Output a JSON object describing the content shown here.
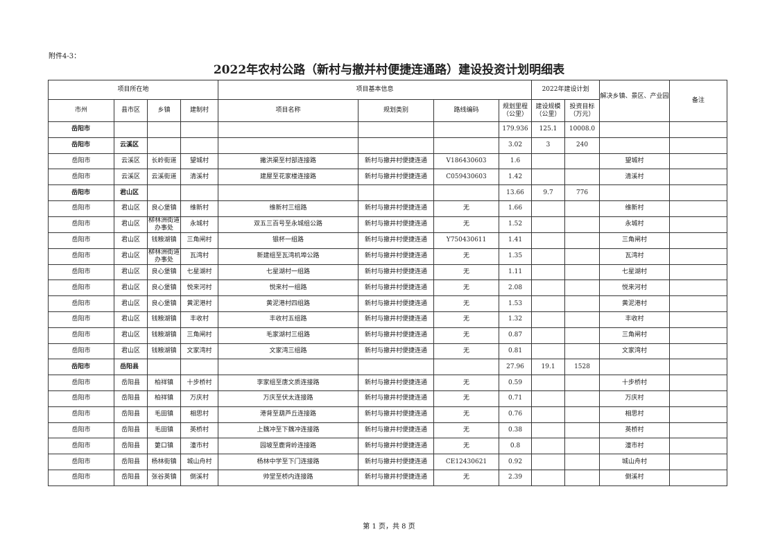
{
  "attachment_label": "附件4-3：",
  "title": "2022年农村公路（新村与撤并村便捷连通路）建设投资计划明细表",
  "header": {
    "group_location": "项目所在地",
    "group_basic": "项目基本信息",
    "group_plan": "2022年建设计划",
    "solve": "解决乡镇、景区、产业园",
    "remark": "备注",
    "columns": [
      "市州",
      "县市区",
      "乡镇",
      "建制村",
      "项目名称",
      "规划类别",
      "路线编码",
      "规划里程（公里）",
      "建设规模（公里）",
      "投资目标（万元）"
    ]
  },
  "rows": [
    {
      "type": "sum",
      "cells": [
        "岳阳市",
        "",
        "",
        "",
        "",
        "",
        "",
        "179.936",
        "125.1",
        "10008.0",
        "",
        ""
      ]
    },
    {
      "type": "sum",
      "cells": [
        "岳阳市",
        "云溪区",
        "",
        "",
        "",
        "",
        "",
        "3.02",
        "3",
        "240",
        "",
        ""
      ]
    },
    {
      "type": "item",
      "cells": [
        "岳阳市",
        "云溪区",
        "长岭街道",
        "望城村",
        "撇洪渠至村部连接路",
        "新村与撤井村便捷连通",
        "V186430603",
        "1.6",
        "",
        "",
        "望城村",
        ""
      ]
    },
    {
      "type": "item",
      "cells": [
        "岳阳市",
        "云溪区",
        "云溪街道",
        "清溪村",
        "建屋至花家楼连接路",
        "新村与撤井村便捷连通",
        "C059430603",
        "1.42",
        "",
        "",
        "清溪村",
        ""
      ]
    },
    {
      "type": "sum",
      "cells": [
        "岳阳市",
        "君山区",
        "",
        "",
        "",
        "",
        "",
        "13.66",
        "9.7",
        "776",
        "",
        ""
      ]
    },
    {
      "type": "item",
      "cells": [
        "岳阳市",
        "君山区",
        "良心堡镇",
        "维新村",
        "维新村三组路",
        "新村与撤井村便捷连通",
        "无",
        "1.66",
        "",
        "",
        "维新村",
        ""
      ]
    },
    {
      "type": "item",
      "cells": [
        "岳阳市",
        "君山区",
        "柳林洲街道办事处",
        "永城村",
        "双五三百号至永城组公路",
        "新村与撤井村便捷连通",
        "无",
        "1.52",
        "",
        "",
        "永城村",
        ""
      ]
    },
    {
      "type": "item",
      "cells": [
        "岳阳市",
        "君山区",
        "钱粮湖镇",
        "三角闸村",
        "银杯一组路",
        "新村与撤井村便捷连通",
        "Y750430611",
        "1.41",
        "",
        "",
        "三角闸村",
        ""
      ]
    },
    {
      "type": "item",
      "cells": [
        "岳阳市",
        "君山区",
        "柳林洲街道办事处",
        "瓦湾村",
        "新建组至瓦湾机埠公路",
        "新村与撤井村便捷连通",
        "无",
        "1.35",
        "",
        "",
        "瓦湾村",
        ""
      ]
    },
    {
      "type": "item",
      "cells": [
        "岳阳市",
        "君山区",
        "良心堡镇",
        "七星湖村",
        "七星湖村一组路",
        "新村与撤井村便捷连通",
        "无",
        "1.11",
        "",
        "",
        "七星湖村",
        ""
      ]
    },
    {
      "type": "item",
      "cells": [
        "岳阳市",
        "君山区",
        "良心堡镇",
        "悦来河村",
        "悦来村一组路",
        "新村与撤井村便捷连通",
        "无",
        "2.08",
        "",
        "",
        "悦来河村",
        ""
      ]
    },
    {
      "type": "item",
      "cells": [
        "岳阳市",
        "君山区",
        "良心堡镇",
        "黄泥港村",
        "黄泥港村四组路",
        "新村与撤井村便捷连通",
        "无",
        "1.53",
        "",
        "",
        "黄泥港村",
        ""
      ]
    },
    {
      "type": "item",
      "cells": [
        "岳阳市",
        "君山区",
        "钱粮湖镇",
        "丰收村",
        "丰收村五组路",
        "新村与撤井村便捷连通",
        "无",
        "1.32",
        "",
        "",
        "丰收村",
        ""
      ]
    },
    {
      "type": "item",
      "cells": [
        "岳阳市",
        "君山区",
        "钱粮湖镇",
        "三角闸村",
        "毛家湖村三组路",
        "新村与撤井村便捷连通",
        "无",
        "0.87",
        "",
        "",
        "三角闸村",
        ""
      ]
    },
    {
      "type": "item",
      "cells": [
        "岳阳市",
        "君山区",
        "钱粮湖镇",
        "文家湾村",
        "文家湾三组路",
        "新村与撤井村便捷连通",
        "无",
        "0.81",
        "",
        "",
        "文家湾村",
        ""
      ]
    },
    {
      "type": "sum",
      "cells": [
        "岳阳市",
        "岳阳县",
        "",
        "",
        "",
        "",
        "",
        "27.96",
        "19.1",
        "1528",
        "",
        ""
      ]
    },
    {
      "type": "item",
      "cells": [
        "岳阳市",
        "岳阳县",
        "柏祥镇",
        "十步桥村",
        "李家组至唐文质连接路",
        "新村与撤井村便捷连通",
        "无",
        "0.59",
        "",
        "",
        "十步桥村",
        ""
      ]
    },
    {
      "type": "item",
      "cells": [
        "岳阳市",
        "岳阳县",
        "柏祥镇",
        "万庆村",
        "万庆至伏太连接路",
        "新村与撤井村便捷连通",
        "无",
        "0.71",
        "",
        "",
        "万庆村",
        ""
      ]
    },
    {
      "type": "item",
      "cells": [
        "岳阳市",
        "岳阳县",
        "毛田镇",
        "相思村",
        "港背至葫芦丘连接路",
        "新村与撤井村便捷连通",
        "无",
        "0.76",
        "",
        "",
        "相思村",
        ""
      ]
    },
    {
      "type": "item",
      "cells": [
        "岳阳市",
        "岳阳县",
        "毛田镇",
        "英桥村",
        "上魏冲至下魏冲连接路",
        "新村与撤井村便捷连通",
        "无",
        "0.38",
        "",
        "",
        "英桥村",
        ""
      ]
    },
    {
      "type": "item",
      "cells": [
        "岳阳市",
        "岳阳县",
        "筻口镇",
        "潼市村",
        "园坡至鹿背岭连接路",
        "新村与撤井村便捷连通",
        "无",
        "0.8",
        "",
        "",
        "潼市村",
        ""
      ]
    },
    {
      "type": "item",
      "cells": [
        "岳阳市",
        "岳阳县",
        "杨林街镇",
        "城山舟村",
        "杨林中学至下门连接路",
        "新村与撤井村便捷连通",
        "CE12430621",
        "0.92",
        "",
        "",
        "城山舟村",
        ""
      ]
    },
    {
      "type": "item",
      "cells": [
        "岳阳市",
        "岳阳县",
        "张谷英镇",
        "倒溪村",
        "帅堂至桥内连接路",
        "新村与撤井村便捷连通",
        "无",
        "2.39",
        "",
        "",
        "倒溪村",
        ""
      ]
    }
  ],
  "footer": "第 1 页，共 8 页"
}
